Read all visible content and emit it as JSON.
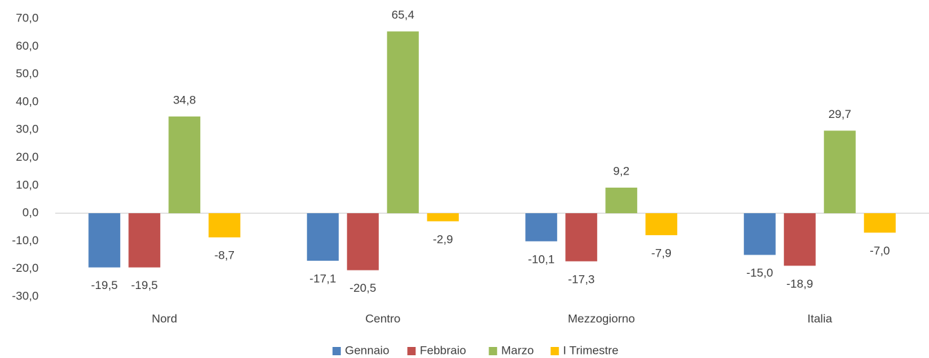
{
  "chart_data": {
    "type": "bar",
    "categories": [
      "Nord",
      "Centro",
      "Mezzogiorno",
      "Italia"
    ],
    "series": [
      {
        "name": "Gennaio",
        "color": "#4f81bd",
        "values": [
          -19.5,
          -17.1,
          -10.1,
          -15.0
        ],
        "value_labels": [
          "-19,5",
          "-17,1",
          "-10,1",
          "-15,0"
        ]
      },
      {
        "name": "Febbraio",
        "color": "#c0504d",
        "values": [
          -19.5,
          -20.5,
          -17.3,
          -18.9
        ],
        "value_labels": [
          "-19,5",
          "-20,5",
          "-17,3",
          "-18,9"
        ]
      },
      {
        "name": "Marzo",
        "color": "#9bbb59",
        "values": [
          34.8,
          65.4,
          9.2,
          29.7
        ],
        "value_labels": [
          "34,8",
          "65,4",
          "9,2",
          "29,7"
        ]
      },
      {
        "name": "I Trimestre",
        "color": "#ffc000",
        "values": [
          -8.7,
          -2.9,
          -7.9,
          -7.0
        ],
        "value_labels": [
          "-8,7",
          "-2,9",
          "-7,9",
          "-7,0"
        ]
      }
    ],
    "ylim": [
      -30,
      70
    ],
    "yticks": [
      {
        "value": -30,
        "label": "-30,0"
      },
      {
        "value": -20,
        "label": "-20,0"
      },
      {
        "value": -10,
        "label": "-10,0"
      },
      {
        "value": 0,
        "label": "0,0"
      },
      {
        "value": 10,
        "label": "10,0"
      },
      {
        "value": 20,
        "label": "20,0"
      },
      {
        "value": 30,
        "label": "30,0"
      },
      {
        "value": 40,
        "label": "40,0"
      },
      {
        "value": 50,
        "label": "50,0"
      },
      {
        "value": 60,
        "label": "60,0"
      },
      {
        "value": 70,
        "label": "70,0"
      }
    ],
    "legend": "bottom"
  }
}
